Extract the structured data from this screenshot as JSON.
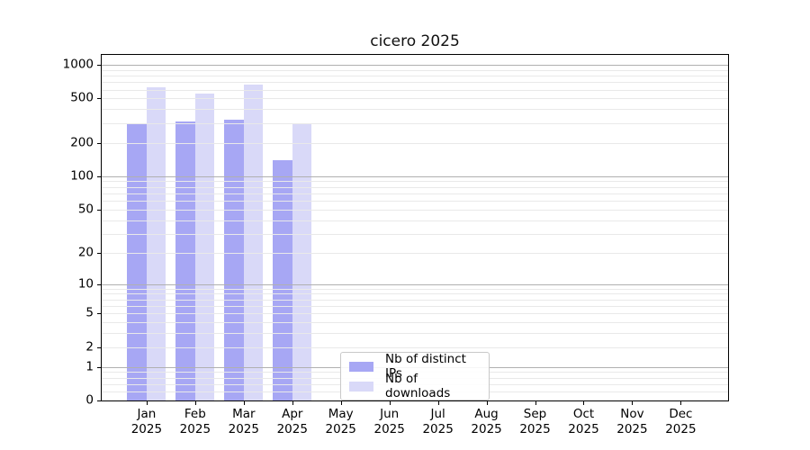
{
  "title": "cicero 2025",
  "colors": {
    "distinct_ips": "#a7a7f4",
    "downloads": "#d9d9f8",
    "grid_major": "#b0b0b0",
    "grid_minor": "#e9e9e9",
    "axis": "#000000",
    "legend_border": "#c9c9c9"
  },
  "legend": {
    "items": [
      {
        "label": "Nb of distinct IPs",
        "color": "#a7a7f4"
      },
      {
        "label": "Nb of downloads",
        "color": "#d9d9f8"
      }
    ]
  },
  "chart_data": {
    "type": "bar",
    "title": "cicero 2025",
    "categories": [
      "Jan",
      "Feb",
      "Mar",
      "Apr",
      "May",
      "Jun",
      "Jul",
      "Aug",
      "Sep",
      "Oct",
      "Nov",
      "Dec"
    ],
    "year_label": "2025",
    "series": [
      {
        "name": "Nb of distinct IPs",
        "color": "#a7a7f4",
        "values": [
          300,
          310,
          325,
          140,
          0,
          0,
          0,
          0,
          0,
          0,
          0,
          0
        ]
      },
      {
        "name": "Nb of downloads",
        "color": "#d9d9f8",
        "values": [
          630,
          550,
          660,
          300,
          0,
          0,
          0,
          0,
          0,
          0,
          0,
          0
        ]
      }
    ],
    "yscale": "log1p",
    "ylim": [
      0,
      1226
    ],
    "yticks": [
      0,
      1,
      2,
      5,
      10,
      20,
      50,
      100,
      200,
      500,
      1000
    ],
    "grid": "horizontal-major-and-minor",
    "legend_position": "lower center-left",
    "bar_width_units": 0.4,
    "xlim": [
      -0.925,
      11.975
    ]
  }
}
